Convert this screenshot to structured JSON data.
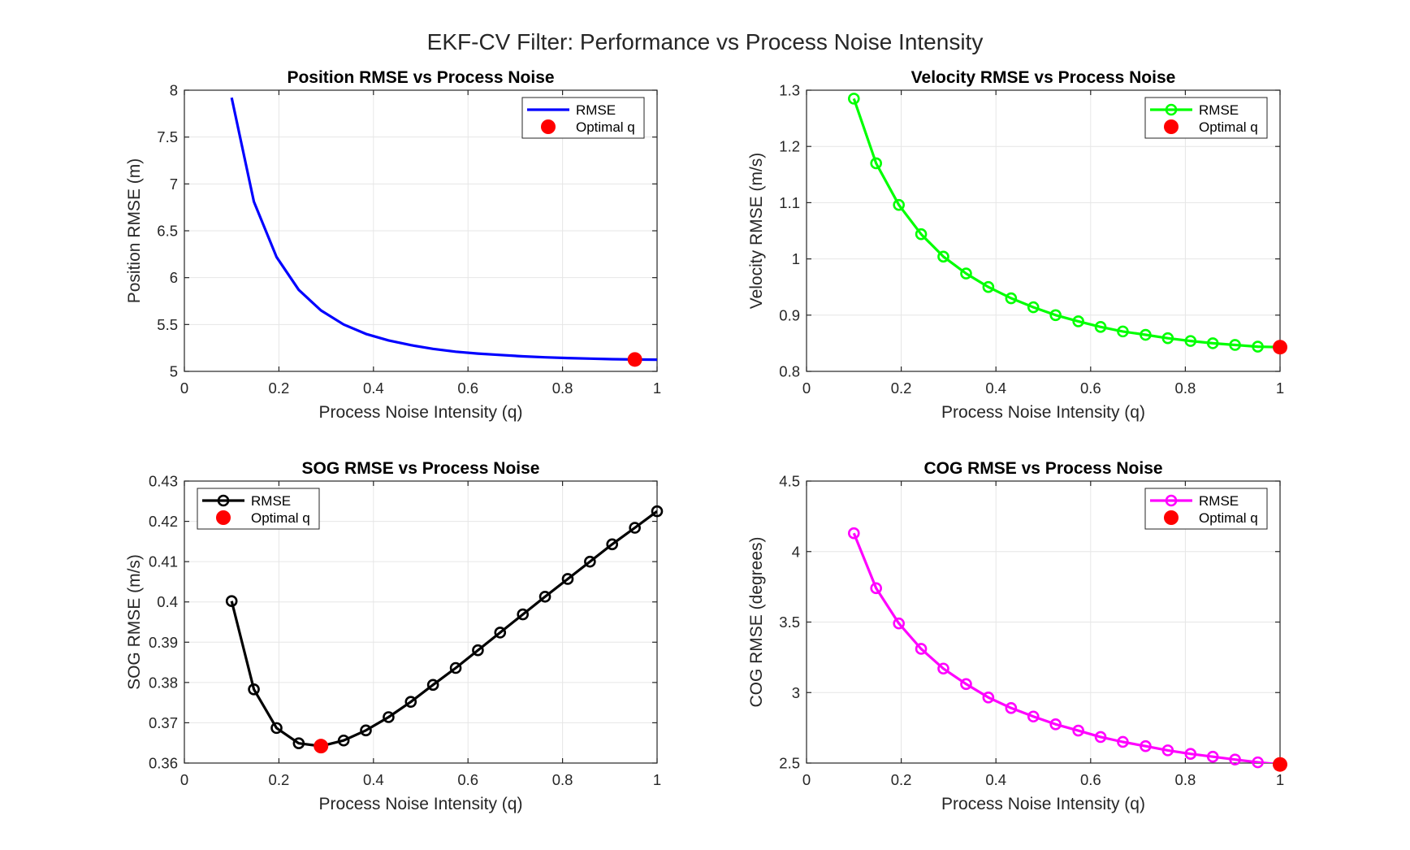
{
  "figure": {
    "title": "EKF-CV Filter: Performance vs Process Noise Intensity"
  },
  "colors": {
    "position": "#0000ff",
    "velocity": "#00ff00",
    "sog": "#000000",
    "cog": "#ff00ff",
    "optimal": "#ff0000",
    "grid": "#e6e6e6",
    "axes": "#262626"
  },
  "chart_data": [
    {
      "id": "position",
      "type": "line",
      "title": "Position RMSE vs Process Noise",
      "xlabel": "Process Noise Intensity (q)",
      "ylabel": "Position RMSE (m)",
      "xlim": [
        0,
        1
      ],
      "ylim": [
        5,
        8
      ],
      "xticks": [
        0,
        0.2,
        0.4,
        0.6,
        0.8,
        1
      ],
      "xtick_labels": [
        "0",
        "0.2",
        "0.4",
        "0.6",
        "0.8",
        "1"
      ],
      "yticks": [
        5,
        5.5,
        6,
        6.5,
        7,
        7.5,
        8
      ],
      "ytick_labels": [
        "5",
        "5.5",
        "6",
        "6.5",
        "7",
        "7.5",
        "8"
      ],
      "grid": true,
      "legend_placement": "top-right",
      "markers": false,
      "series": [
        {
          "name": "RMSE",
          "x": [
            0.1,
            0.147,
            0.195,
            0.242,
            0.289,
            0.337,
            0.384,
            0.432,
            0.479,
            0.526,
            0.574,
            0.621,
            0.668,
            0.716,
            0.763,
            0.811,
            0.858,
            0.905,
            0.953,
            1.0
          ],
          "values": [
            7.92,
            6.81,
            6.22,
            5.87,
            5.65,
            5.5,
            5.4,
            5.33,
            5.28,
            5.24,
            5.21,
            5.19,
            5.175,
            5.16,
            5.15,
            5.142,
            5.136,
            5.13,
            5.127,
            5.125
          ]
        },
        {
          "name": "Optimal q",
          "x": [
            0.953
          ],
          "values": [
            5.127
          ]
        }
      ]
    },
    {
      "id": "velocity",
      "type": "line",
      "title": "Velocity RMSE vs Process Noise",
      "xlabel": "Process Noise Intensity (q)",
      "ylabel": "Velocity RMSE (m/s)",
      "xlim": [
        0,
        1
      ],
      "ylim": [
        0.8,
        1.3
      ],
      "xticks": [
        0,
        0.2,
        0.4,
        0.6,
        0.8,
        1
      ],
      "xtick_labels": [
        "0",
        "0.2",
        "0.4",
        "0.6",
        "0.8",
        "1"
      ],
      "yticks": [
        0.8,
        0.9,
        1.0,
        1.1,
        1.2,
        1.3
      ],
      "ytick_labels": [
        "0.8",
        "0.9",
        "1",
        "1.1",
        "1.2",
        "1.3"
      ],
      "grid": true,
      "legend_placement": "top-right",
      "markers": true,
      "series": [
        {
          "name": "RMSE",
          "x": [
            0.1,
            0.147,
            0.195,
            0.242,
            0.289,
            0.337,
            0.384,
            0.432,
            0.479,
            0.526,
            0.574,
            0.621,
            0.668,
            0.716,
            0.763,
            0.811,
            0.858,
            0.905,
            0.953,
            1.0
          ],
          "values": [
            1.285,
            1.17,
            1.096,
            1.044,
            1.004,
            0.974,
            0.95,
            0.93,
            0.914,
            0.9,
            0.889,
            0.879,
            0.871,
            0.865,
            0.859,
            0.854,
            0.85,
            0.847,
            0.844,
            0.843
          ]
        },
        {
          "name": "Optimal q",
          "x": [
            1.0
          ],
          "values": [
            0.843
          ]
        }
      ]
    },
    {
      "id": "sog",
      "type": "line",
      "title": "SOG RMSE vs Process Noise",
      "xlabel": "Process Noise Intensity (q)",
      "ylabel": "SOG RMSE (m/s)",
      "xlim": [
        0,
        1
      ],
      "ylim": [
        0.36,
        0.43
      ],
      "xticks": [
        0,
        0.2,
        0.4,
        0.6,
        0.8,
        1
      ],
      "xtick_labels": [
        "0",
        "0.2",
        "0.4",
        "0.6",
        "0.8",
        "1"
      ],
      "yticks": [
        0.36,
        0.37,
        0.38,
        0.39,
        0.4,
        0.41,
        0.42,
        0.43
      ],
      "ytick_labels": [
        "0.36",
        "0.37",
        "0.38",
        "0.39",
        "0.4",
        "0.41",
        "0.42",
        "0.43"
      ],
      "grid": true,
      "legend_placement": "top-left",
      "markers": true,
      "series": [
        {
          "name": "RMSE",
          "x": [
            0.1,
            0.147,
            0.195,
            0.242,
            0.289,
            0.337,
            0.384,
            0.432,
            0.479,
            0.526,
            0.574,
            0.621,
            0.668,
            0.716,
            0.763,
            0.811,
            0.858,
            0.905,
            0.953,
            1.0
          ],
          "values": [
            0.4002,
            0.3783,
            0.3687,
            0.3649,
            0.3642,
            0.3656,
            0.3681,
            0.3714,
            0.3752,
            0.3794,
            0.3836,
            0.388,
            0.3924,
            0.3969,
            0.4013,
            0.4057,
            0.41,
            0.4143,
            0.4184,
            0.4225
          ]
        },
        {
          "name": "Optimal q",
          "x": [
            0.289
          ],
          "values": [
            0.3642
          ]
        }
      ]
    },
    {
      "id": "cog",
      "type": "line",
      "title": "COG RMSE vs Process Noise",
      "xlabel": "Process Noise Intensity (q)",
      "ylabel": "COG RMSE (degrees)",
      "xlim": [
        0,
        1
      ],
      "ylim": [
        2.5,
        4.5
      ],
      "xticks": [
        0,
        0.2,
        0.4,
        0.6,
        0.8,
        1
      ],
      "xtick_labels": [
        "0",
        "0.2",
        "0.4",
        "0.6",
        "0.8",
        "1"
      ],
      "yticks": [
        2.5,
        3.0,
        3.5,
        4.0,
        4.5
      ],
      "ytick_labels": [
        "2.5",
        "3",
        "3.5",
        "4",
        "4.5"
      ],
      "grid": true,
      "legend_placement": "top-right",
      "markers": true,
      "series": [
        {
          "name": "RMSE",
          "x": [
            0.1,
            0.147,
            0.195,
            0.242,
            0.289,
            0.337,
            0.384,
            0.432,
            0.479,
            0.526,
            0.574,
            0.621,
            0.668,
            0.716,
            0.763,
            0.811,
            0.858,
            0.905,
            0.953,
            1.0
          ],
          "values": [
            4.13,
            3.74,
            3.49,
            3.31,
            3.17,
            3.06,
            2.965,
            2.89,
            2.83,
            2.775,
            2.73,
            2.685,
            2.65,
            2.62,
            2.59,
            2.565,
            2.545,
            2.525,
            2.505,
            2.49
          ]
        },
        {
          "name": "Optimal q",
          "x": [
            1.0
          ],
          "values": [
            2.49
          ]
        }
      ]
    }
  ]
}
